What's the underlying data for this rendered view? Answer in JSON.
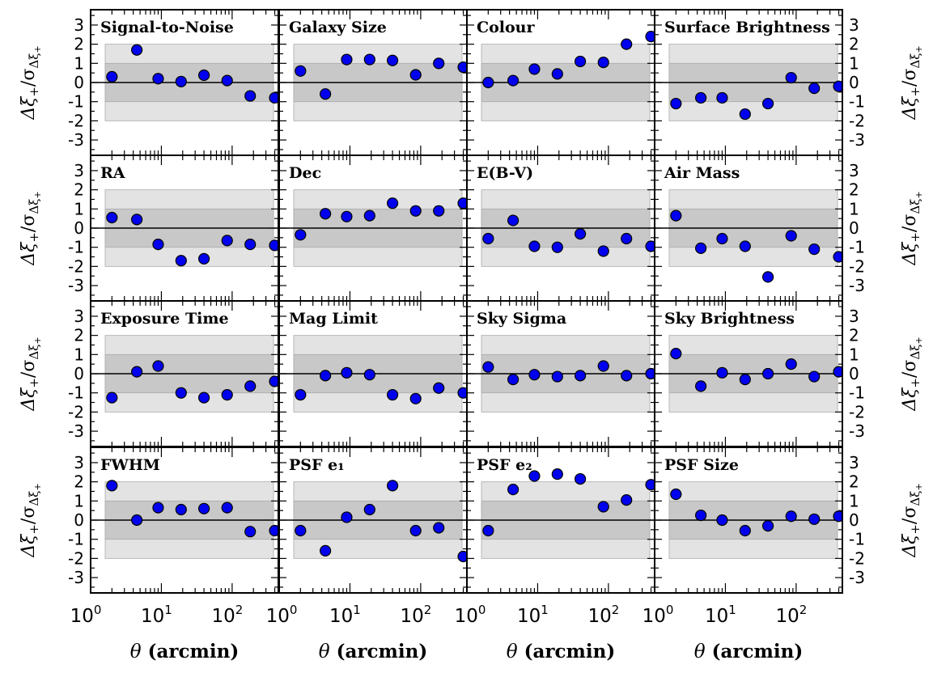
{
  "chart_data": {
    "type": "scatter",
    "layout": {
      "rows": 4,
      "cols": 4,
      "sharex": true,
      "sharey": true
    },
    "x_values": [
      2,
      4.5,
      9,
      19,
      40,
      85,
      180,
      400
    ],
    "xscale": "log",
    "xlim": [
      1,
      450
    ],
    "ylim": [
      -3.8,
      3.8
    ],
    "yticks": [
      -3,
      -2,
      -1,
      0,
      1,
      2,
      3
    ],
    "xtick_labels": [
      {
        "base": "10",
        "exp": "0"
      },
      {
        "base": "10",
        "exp": "1"
      },
      {
        "base": "10",
        "exp": "2"
      }
    ],
    "xlabel": {
      "symbol": "θ",
      "text": " (arcmin)"
    },
    "ylabel": {
      "main": "Δξ",
      "sub": "+",
      "sep": "/σ",
      "sub2": "Δξ",
      "sub3": "+"
    },
    "bands": [
      {
        "range": [
          -2,
          2
        ],
        "color": "#e3e3e3"
      },
      {
        "range": [
          -1,
          1
        ],
        "color": "#c8c8c8"
      }
    ],
    "marker_color": "#0000ee",
    "panels": [
      {
        "title": "Signal-to-Noise",
        "values": [
          0.3,
          1.7,
          0.2,
          0.05,
          0.38,
          0.1,
          -0.7,
          -0.8
        ]
      },
      {
        "title": "Galaxy Size",
        "values": [
          0.6,
          -0.6,
          1.2,
          1.2,
          1.15,
          0.4,
          1.0,
          0.8
        ]
      },
      {
        "title": "Colour",
        "values": [
          0.0,
          0.1,
          0.7,
          0.45,
          1.1,
          1.05,
          2.0,
          2.4
        ]
      },
      {
        "title": "Surface Brightness",
        "values": [
          -1.1,
          -0.8,
          -0.8,
          -1.65,
          -1.1,
          0.25,
          -0.3,
          -0.2
        ]
      },
      {
        "title": "RA",
        "values": [
          0.55,
          0.45,
          -0.85,
          -1.7,
          -1.6,
          -0.65,
          -0.85,
          -0.9
        ]
      },
      {
        "title": "Dec",
        "values": [
          -0.35,
          0.75,
          0.6,
          0.65,
          1.3,
          0.9,
          0.9,
          1.3
        ]
      },
      {
        "title": "E(B-V)",
        "values": [
          -0.55,
          0.4,
          -0.95,
          -1.0,
          -0.3,
          -1.2,
          -0.55,
          -0.95
        ]
      },
      {
        "title": "Air Mass",
        "values": [
          0.65,
          -1.05,
          -0.55,
          -0.95,
          -2.55,
          -0.4,
          -1.1,
          -1.5
        ]
      },
      {
        "title": "Exposure Time",
        "values": [
          -1.25,
          0.1,
          0.4,
          -1.0,
          -1.25,
          -1.1,
          -0.65,
          -0.4
        ]
      },
      {
        "title": "Mag Limit",
        "values": [
          -1.1,
          -0.1,
          0.05,
          -0.05,
          -1.1,
          -1.3,
          -0.75,
          -1.0
        ]
      },
      {
        "title": "Sky Sigma",
        "values": [
          0.35,
          -0.3,
          -0.05,
          -0.15,
          -0.1,
          0.4,
          -0.1,
          0.0
        ]
      },
      {
        "title": "Sky Brightness",
        "values": [
          1.05,
          -0.65,
          0.05,
          -0.3,
          0.0,
          0.5,
          -0.15,
          0.1
        ]
      },
      {
        "title": "FWHM",
        "values": [
          1.8,
          0.0,
          0.65,
          0.55,
          0.6,
          0.65,
          -0.6,
          -0.55
        ]
      },
      {
        "title": "PSF e₁",
        "values": [
          -0.55,
          -1.6,
          0.15,
          0.55,
          1.8,
          -0.55,
          -0.4,
          -1.9
        ]
      },
      {
        "title": "PSF e₂",
        "values": [
          -0.55,
          1.6,
          2.3,
          2.4,
          2.15,
          0.7,
          1.05,
          1.85
        ]
      },
      {
        "title": "PSF Size",
        "values": [
          1.35,
          0.25,
          0.0,
          -0.55,
          -0.3,
          0.2,
          0.05,
          0.2
        ]
      }
    ]
  }
}
